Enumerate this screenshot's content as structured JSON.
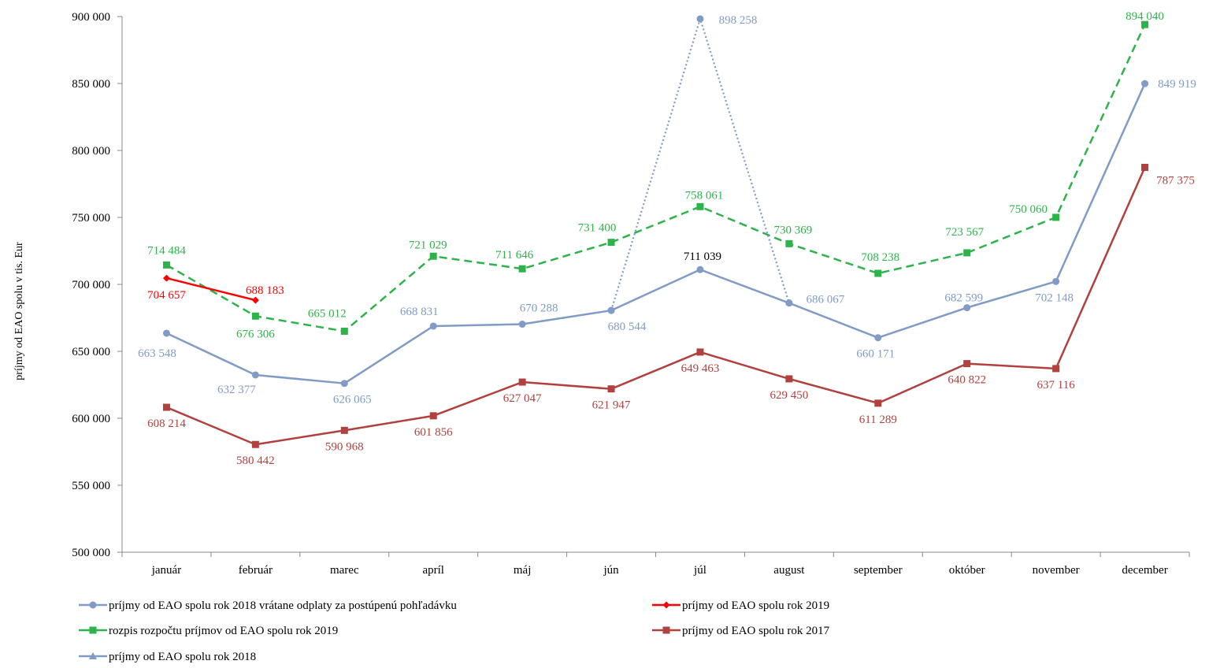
{
  "chart_data": {
    "type": "line",
    "ylabel": "príjmy od EAO spolu v tis. Eur",
    "ylim": [
      500000,
      900000
    ],
    "yticks": [
      500000,
      550000,
      600000,
      650000,
      700000,
      750000,
      800000,
      850000,
      900000
    ],
    "ytick_labels": [
      "500 000",
      "550 000",
      "600 000",
      "650 000",
      "700 000",
      "750 000",
      "800 000",
      "850 000",
      "900 000"
    ],
    "categories": [
      "január",
      "február",
      "marec",
      "apríl",
      "máj",
      "jún",
      "júl",
      "august",
      "september",
      "október",
      "november",
      "december"
    ],
    "grid": false,
    "legend_position": "bottom",
    "series": [
      {
        "key": "s2018_incl",
        "name": "príjmy od EAO spolu rok 2018 vrátane odplaty za postúpenú pohľadávku",
        "color": "#7f9bc6",
        "style": "dotted",
        "marker": "circle",
        "values": [
          null,
          null,
          null,
          null,
          null,
          680544,
          898258,
          686067,
          null,
          null,
          null,
          null
        ],
        "labels": [
          null,
          null,
          null,
          null,
          null,
          null,
          "898 258",
          null,
          null,
          null,
          null,
          null
        ]
      },
      {
        "key": "s2019",
        "name": "príjmy od EAO spolu rok 2019",
        "color": "#ff0000",
        "style": "solid",
        "marker": "diamond",
        "values": [
          704657,
          688183,
          null,
          null,
          null,
          null,
          null,
          null,
          null,
          null,
          null,
          null
        ],
        "labels": [
          "704 657",
          "688 183",
          null,
          null,
          null,
          null,
          null,
          null,
          null,
          null,
          null,
          null
        ]
      },
      {
        "key": "budget2019",
        "name": "rozpis rozpočtu príjmov od EAO spolu rok 2019",
        "color": "#2eb24a",
        "style": "dashed",
        "marker": "square",
        "values": [
          714484,
          676306,
          665012,
          721029,
          711646,
          731400,
          758061,
          730369,
          708238,
          723567,
          750060,
          894040
        ],
        "labels": [
          "714 484",
          "676 306",
          "665 012",
          "721 029",
          "711 646",
          "731 400",
          "758 061",
          "730 369",
          "708 238",
          "723 567",
          "750 060",
          "894 040"
        ]
      },
      {
        "key": "s2017",
        "name": "príjmy od EAO spolu rok 2017",
        "color": "#b0413e",
        "style": "solid",
        "marker": "square",
        "values": [
          608214,
          580442,
          590968,
          601856,
          627047,
          621947,
          649463,
          629450,
          611289,
          640822,
          637116,
          787375
        ],
        "labels": [
          "608 214",
          "580 442",
          "590 968",
          "601 856",
          "627 047",
          "621 947",
          "649 463",
          "629 450",
          "611 289",
          "640 822",
          "637 116",
          "787 375"
        ]
      },
      {
        "key": "s2018",
        "name": "príjmy od EAO spolu rok 2018",
        "color": "#7f9bc6",
        "style": "solid",
        "marker": "circle",
        "values": [
          663548,
          632377,
          626065,
          668831,
          670288,
          680544,
          711039,
          686067,
          660171,
          682599,
          702148,
          849919
        ],
        "labels": [
          "663 548",
          "632 377",
          "626 065",
          "668 831",
          "670 288",
          "680 544",
          "711 039",
          "686 067",
          "660 171",
          "682 599",
          "702 148",
          "849 919"
        ]
      }
    ]
  }
}
